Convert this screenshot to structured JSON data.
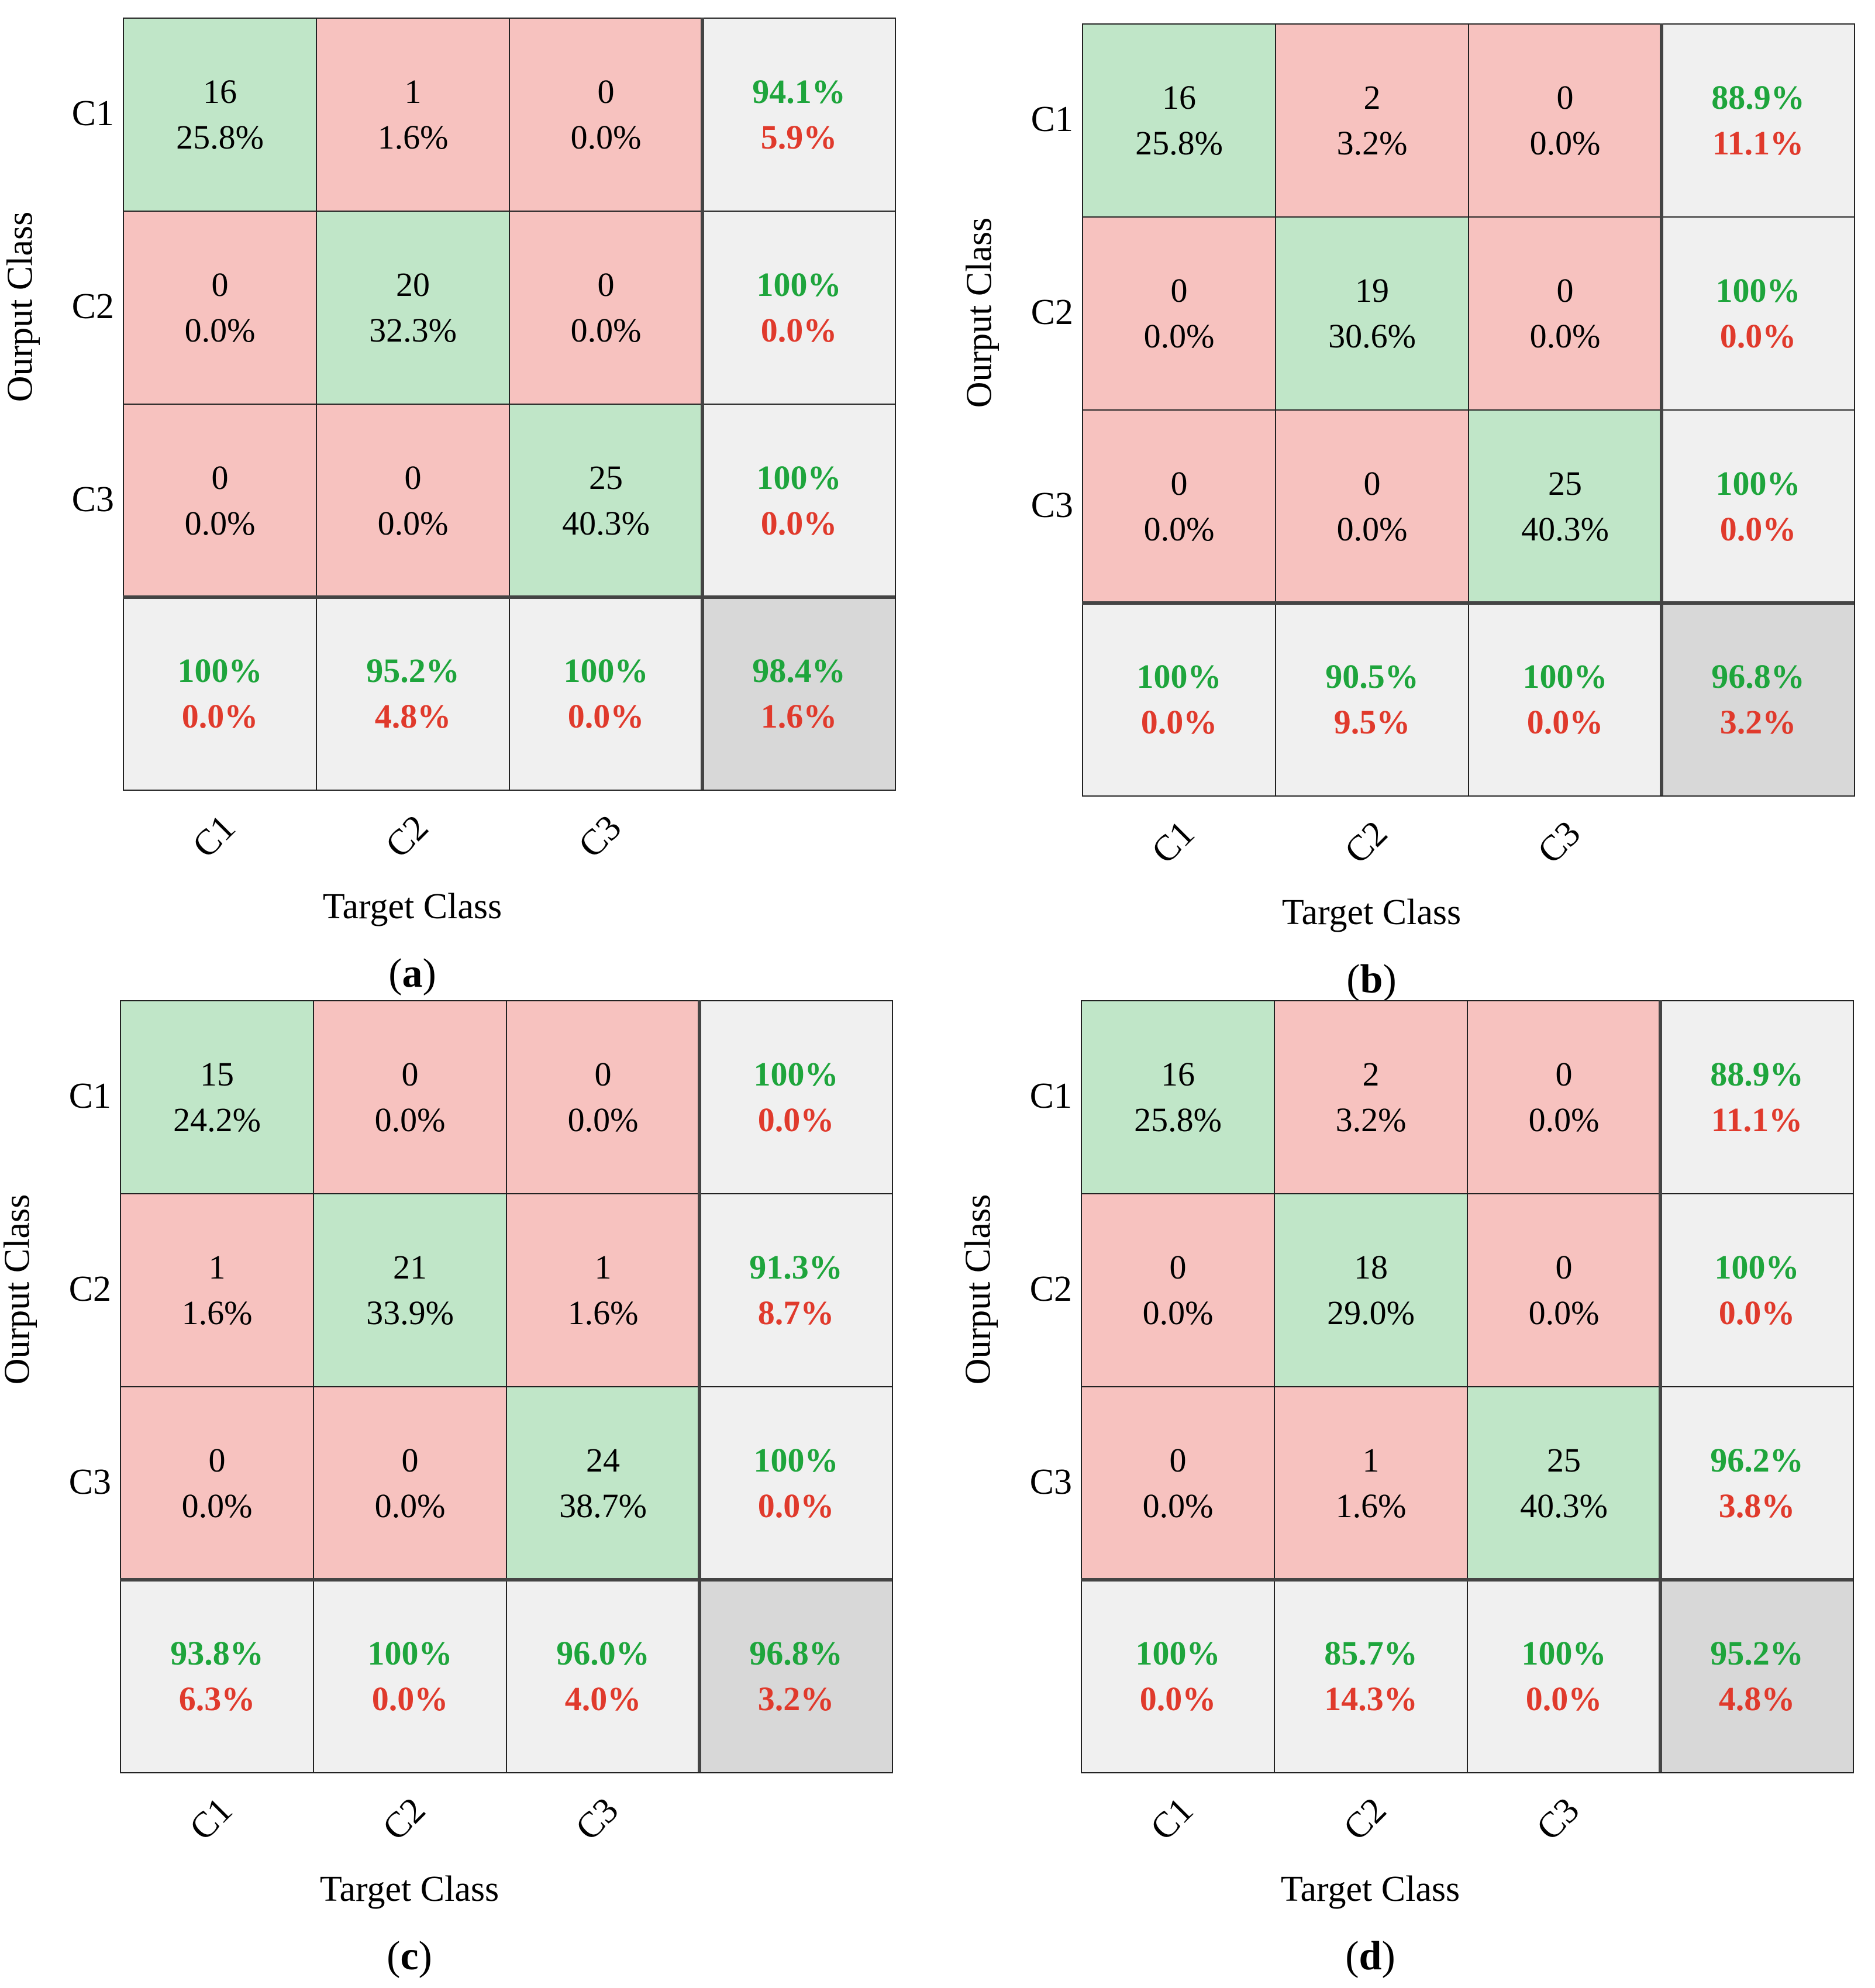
{
  "chart_data": [
    {
      "type": "table",
      "title": "Confusion matrix (a)",
      "caption_letter": "a",
      "ylabel": "Ourput Class",
      "xlabel": "Target Class",
      "classes": [
        "C1",
        "C2",
        "C3"
      ],
      "counts": [
        [
          16,
          1,
          0
        ],
        [
          0,
          20,
          0
        ],
        [
          0,
          0,
          25
        ]
      ],
      "percents": [
        [
          "25.8%",
          "1.6%",
          "0.0%"
        ],
        [
          "0.0%",
          "32.3%",
          "0.0%"
        ],
        [
          "0.0%",
          "0.0%",
          "40.3%"
        ]
      ],
      "row_summary": [
        [
          "94.1%",
          "5.9%"
        ],
        [
          "100%",
          "0.0%"
        ],
        [
          "100%",
          "0.0%"
        ]
      ],
      "col_summary": [
        [
          "100%",
          "0.0%"
        ],
        [
          "95.2%",
          "4.8%"
        ],
        [
          "100%",
          "0.0%"
        ]
      ],
      "overall": [
        "98.4%",
        "1.6%"
      ]
    },
    {
      "type": "table",
      "title": "Confusion matrix (b)",
      "caption_letter": "b",
      "ylabel": "Ourput Class",
      "xlabel": "Target Class",
      "classes": [
        "C1",
        "C2",
        "C3"
      ],
      "counts": [
        [
          16,
          2,
          0
        ],
        [
          0,
          19,
          0
        ],
        [
          0,
          0,
          25
        ]
      ],
      "percents": [
        [
          "25.8%",
          "3.2%",
          "0.0%"
        ],
        [
          "0.0%",
          "30.6%",
          "0.0%"
        ],
        [
          "0.0%",
          "0.0%",
          "40.3%"
        ]
      ],
      "row_summary": [
        [
          "88.9%",
          "11.1%"
        ],
        [
          "100%",
          "0.0%"
        ],
        [
          "100%",
          "0.0%"
        ]
      ],
      "col_summary": [
        [
          "100%",
          "0.0%"
        ],
        [
          "90.5%",
          "9.5%"
        ],
        [
          "100%",
          "0.0%"
        ]
      ],
      "overall": [
        "96.8%",
        "3.2%"
      ]
    },
    {
      "type": "table",
      "title": "Confusion matrix (c)",
      "caption_letter": "c",
      "ylabel": "Ourput Class",
      "xlabel": "Target Class",
      "classes": [
        "C1",
        "C2",
        "C3"
      ],
      "counts": [
        [
          15,
          0,
          0
        ],
        [
          1,
          21,
          1
        ],
        [
          0,
          0,
          24
        ]
      ],
      "percents": [
        [
          "24.2%",
          "0.0%",
          "0.0%"
        ],
        [
          "1.6%",
          "33.9%",
          "1.6%"
        ],
        [
          "0.0%",
          "0.0%",
          "38.7%"
        ]
      ],
      "row_summary": [
        [
          "100%",
          "0.0%"
        ],
        [
          "91.3%",
          "8.7%"
        ],
        [
          "100%",
          "0.0%"
        ]
      ],
      "col_summary": [
        [
          "93.8%",
          "6.3%"
        ],
        [
          "100%",
          "0.0%"
        ],
        [
          "96.0%",
          "4.0%"
        ]
      ],
      "overall": [
        "96.8%",
        "3.2%"
      ]
    },
    {
      "type": "table",
      "title": "Confusion matrix (d)",
      "caption_letter": "d",
      "ylabel": "Ourput Class",
      "xlabel": "Target Class",
      "classes": [
        "C1",
        "C2",
        "C3"
      ],
      "counts": [
        [
          16,
          2,
          0
        ],
        [
          0,
          18,
          0
        ],
        [
          0,
          1,
          25
        ]
      ],
      "percents": [
        [
          "25.8%",
          "3.2%",
          "0.0%"
        ],
        [
          "0.0%",
          "29.0%",
          "0.0%"
        ],
        [
          "0.0%",
          "1.6%",
          "40.3%"
        ]
      ],
      "row_summary": [
        [
          "88.9%",
          "11.1%"
        ],
        [
          "100%",
          "0.0%"
        ],
        [
          "96.2%",
          "3.8%"
        ]
      ],
      "col_summary": [
        [
          "100%",
          "0.0%"
        ],
        [
          "85.7%",
          "14.3%"
        ],
        [
          "100%",
          "0.0%"
        ]
      ],
      "overall": [
        "95.2%",
        "4.8%"
      ]
    }
  ],
  "colors": {
    "correct_cell": "#c0e6c8",
    "error_cell": "#f7c2bf",
    "summary_cell": "#f0f0f0",
    "overall_cell": "#d8d8d8",
    "correct_text": "#1ea53c",
    "error_text": "#e03a2c"
  }
}
